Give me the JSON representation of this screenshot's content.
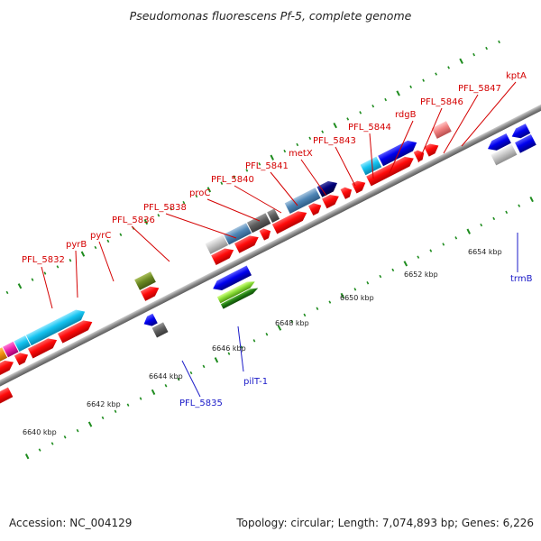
{
  "header": {
    "title": "Pseudomonas fluorescens Pf-5, complete genome"
  },
  "footer": {
    "accession": "Accession: NC_004129",
    "summary": "Topology: circular; Length: 7,074,893 bp; Genes: 6,226"
  },
  "colors": {
    "backbone": "#8a8a8a",
    "tick": "#1e8c1e",
    "forward_gene": "#ff1010",
    "reverse_gene": "#0000ee",
    "label_forward": "#d40000",
    "label_reverse": "#1a1ac8"
  },
  "kbp_labels": [
    "6640 kbp",
    "6642 kbp",
    "6644 kbp",
    "6646 kbp",
    "6648 kbp",
    "6650 kbp",
    "6652 kbp",
    "6654 kbp"
  ],
  "gene_labels_top": [
    "PFL_5832",
    "pyrB",
    "pyrC",
    "PFL_5836",
    "PFL_5838",
    "proC",
    "PFL_5840",
    "PFL_5841",
    "metX",
    "PFL_5843",
    "PFL_5844",
    "rdgB",
    "PFL_5846",
    "PFL_5847",
    "kptA"
  ],
  "gene_labels_bottom": [
    "PFL_5835",
    "pilT-1",
    "trmB"
  ]
}
